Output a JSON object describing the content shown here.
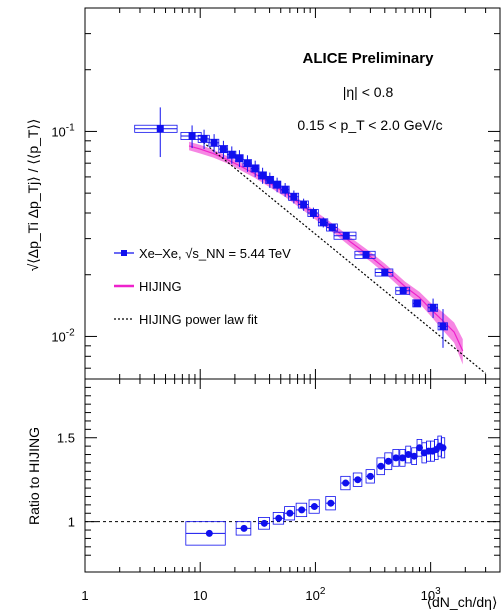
{
  "chart_data": [
    {
      "type": "scatter",
      "panel": "top",
      "log_x": true,
      "log_y": true,
      "xlim": [
        1,
        4000
      ],
      "ylim": [
        0.0062,
        0.4
      ],
      "ylabel": "√⟨Δp_Ti Δp_Tj⟩ / ⟨⟨p_T⟩⟩",
      "y_tick_labels": [
        "10^{-2}",
        "10^{-1}"
      ],
      "annotations": {
        "title": "ALICE Preliminary",
        "eta_cut": "|η| < 0.8",
        "pt_range": "0.15 < p_T < 2.0 GeV/c"
      },
      "legend": {
        "placement": "lower-left",
        "entries": [
          {
            "label": "Xe–Xe, √s_NN = 5.44 TeV",
            "style": "blue-square-marker"
          },
          {
            "label": "HIJING",
            "style": "magenta-band"
          },
          {
            "label": "HIJING power law fit",
            "style": "black-dotted-line"
          }
        ]
      },
      "series": [
        {
          "name": "Xe–Xe, √s_NN = 5.44 TeV",
          "color": "#1010ee",
          "x": [
            4.5,
            8.5,
            10.8,
            13.2,
            15.9,
            18.8,
            21.9,
            25.7,
            30.0,
            34.8,
            40.2,
            46.5,
            54.6,
            65.0,
            79.0,
            96.0,
            117.0,
            140.0,
            185.0,
            275.0,
            400.0,
            578.0,
            760.0,
            1050.0,
            1280.0
          ],
          "xerr": [
            1.8,
            1.7,
            1.2,
            1.3,
            1.4,
            1.6,
            1.7,
            2.2,
            2.4,
            2.8,
            3.2,
            3.6,
            4.6,
            6.5,
            8.0,
            10.0,
            11.0,
            15.0,
            40.0,
            55.0,
            70.0,
            80.0,
            60.0,
            100.0,
            120.0
          ],
          "y": [
            0.103,
            0.095,
            0.092,
            0.088,
            0.082,
            0.077,
            0.074,
            0.07,
            0.066,
            0.061,
            0.058,
            0.055,
            0.052,
            0.048,
            0.044,
            0.04,
            0.036,
            0.034,
            0.031,
            0.025,
            0.0205,
            0.0167,
            0.0145,
            0.0138,
            0.0112
          ],
          "yerr": [
            0.028,
            0.012,
            0.01,
            0.009,
            0.008,
            0.0075,
            0.007,
            0.0065,
            0.006,
            0.0055,
            0.005,
            0.0045,
            0.004,
            0.0035,
            0.003,
            0.0025,
            0.002,
            0.0015,
            0.001,
            0.0008,
            0.0007,
            0.0006,
            0.0005,
            0.0015,
            0.0024
          ]
        },
        {
          "name": "HIJING",
          "color": "#ee22cc",
          "x": [
            8,
            10,
            13,
            17,
            22,
            30,
            40,
            55,
            75,
            100,
            150,
            200,
            300,
            400,
            600,
            800,
            1000,
            1300,
            1600,
            1900
          ],
          "y": [
            0.085,
            0.082,
            0.078,
            0.073,
            0.068,
            0.062,
            0.056,
            0.05,
            0.044,
            0.039,
            0.033,
            0.029,
            0.0245,
            0.0215,
            0.0175,
            0.0155,
            0.0136,
            0.0118,
            0.0105,
            0.0085
          ],
          "yerr": [
            0.004,
            0.004,
            0.0035,
            0.003,
            0.003,
            0.0028,
            0.0025,
            0.0022,
            0.002,
            0.0018,
            0.0016,
            0.0015,
            0.0013,
            0.0012,
            0.001,
            0.001,
            0.001,
            0.0012,
            0.0012,
            0.0012
          ]
        },
        {
          "name": "HIJING power law fit",
          "color": "#000000",
          "x": [
            10,
            3000
          ],
          "y": [
            0.091,
            0.0066
          ]
        }
      ]
    },
    {
      "type": "scatter",
      "panel": "bottom",
      "log_x": true,
      "xlim": [
        1,
        4000
      ],
      "ylim": [
        0.7,
        1.85
      ],
      "ylabel": "Ratio to HIJING",
      "xlabel": "⟨dN_ch/dη⟩",
      "x_tick_labels": [
        "1",
        "10",
        "10^2",
        "10^3"
      ],
      "y_tick_labels": [
        "1",
        "1.5"
      ],
      "reference_line": 1.0,
      "series": [
        {
          "name": "Ratio to HIJING",
          "color": "#1010ee",
          "x": [
            12,
            24,
            36,
            48,
            60,
            76,
            98,
            136,
            183,
            233,
            300,
            370,
            430,
            500,
            570,
            640,
            720,
            800,
            880,
            960,
            1040,
            1120,
            1200,
            1280
          ],
          "xerr": [
            4.5,
            3.5,
            4,
            5,
            6,
            8,
            10,
            13,
            17,
            20,
            25,
            28,
            30,
            30,
            30,
            32,
            35,
            38,
            40,
            40,
            40,
            42,
            45,
            45
          ],
          "y": [
            0.93,
            0.96,
            0.99,
            1.02,
            1.05,
            1.07,
            1.09,
            1.11,
            1.23,
            1.25,
            1.27,
            1.33,
            1.36,
            1.38,
            1.38,
            1.4,
            1.39,
            1.44,
            1.41,
            1.42,
            1.42,
            1.43,
            1.45,
            1.44
          ],
          "yerr": [
            0.07,
            0.04,
            0.035,
            0.035,
            0.04,
            0.04,
            0.04,
            0.04,
            0.04,
            0.04,
            0.04,
            0.05,
            0.05,
            0.05,
            0.05,
            0.05,
            0.05,
            0.05,
            0.06,
            0.06,
            0.06,
            0.06,
            0.06,
            0.06
          ]
        }
      ]
    }
  ]
}
